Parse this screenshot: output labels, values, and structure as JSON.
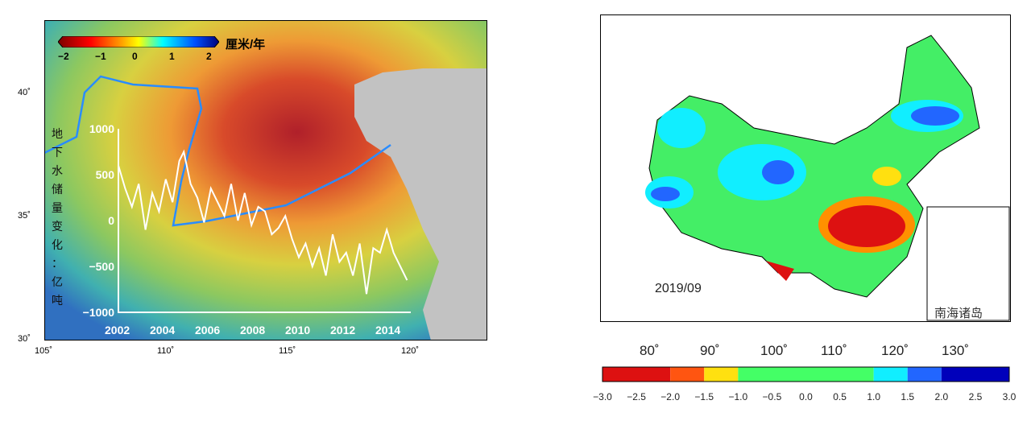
{
  "left_map": {
    "colorbar": {
      "unit": "厘米/年",
      "ticks": [
        "−2",
        "−1",
        "0",
        "1",
        "2"
      ],
      "colors": [
        "#7a0000",
        "#ff0000",
        "#ffa500",
        "#ffff00",
        "#00ffff",
        "#0060ff",
        "#00007a"
      ]
    },
    "lat_labels": [
      "40˚",
      "35˚",
      "30˚"
    ],
    "lon_labels": [
      "105˚",
      "110˚",
      "115˚",
      "120˚"
    ],
    "y_axis_title": [
      "地",
      "下",
      "水",
      "储",
      "量",
      "变",
      "化",
      "：",
      "亿",
      "吨"
    ],
    "y_ticks": [
      "1000",
      "500",
      "0",
      "−500",
      "−1000"
    ],
    "x_ticks": [
      "2002",
      "2004",
      "2006",
      "2008",
      "2010",
      "2012",
      "2014"
    ]
  },
  "chart_data": {
    "type": "line",
    "ylabel": "地下水储量变化：亿吨",
    "ylim": [
      -1000,
      1000
    ],
    "xlim": [
      2002,
      2014.99
    ],
    "x": [
      2002.0,
      2002.3,
      2002.6,
      2002.9,
      2003.2,
      2003.5,
      2003.8,
      2004.1,
      2004.4,
      2004.7,
      2004.9,
      2005.2,
      2005.5,
      2005.8,
      2006.1,
      2006.4,
      2006.7,
      2007.0,
      2007.3,
      2007.6,
      2007.9,
      2008.2,
      2008.5,
      2008.8,
      2009.1,
      2009.4,
      2009.7,
      2010.0,
      2010.3,
      2010.6,
      2010.9,
      2011.2,
      2011.5,
      2011.8,
      2012.1,
      2012.4,
      2012.7,
      2013.0,
      2013.3,
      2013.6,
      2013.9,
      2014.2,
      2014.5,
      2014.8
    ],
    "values": [
      600,
      350,
      150,
      400,
      -100,
      300,
      100,
      450,
      200,
      650,
      750,
      400,
      250,
      -20,
      350,
      200,
      50,
      400,
      0,
      300,
      -50,
      150,
      100,
      -150,
      -80,
      50,
      -200,
      -400,
      -250,
      -500,
      -300,
      -600,
      -150,
      -450,
      -350,
      -600,
      -250,
      -800,
      -300,
      -350,
      -100,
      -350,
      -500,
      -650
    ],
    "line_color": "#ffffff"
  },
  "right_map": {
    "date_label": "2019/09",
    "inset_label": "南海诸岛",
    "lon_labels": [
      "80˚",
      "90˚",
      "100˚",
      "110˚",
      "120˚",
      "130˚"
    ],
    "colorbar": {
      "ticks": [
        "−3.0",
        "−2.5",
        "−2.0",
        "−1.5",
        "−1.0",
        "−0.5",
        "0.0",
        "0.5",
        "1.0",
        "1.5",
        "2.0",
        "2.5",
        "3.0"
      ],
      "bins": [
        [
          -3,
          -2,
          "#dd1111"
        ],
        [
          -2,
          -1.5,
          "#ff5511"
        ],
        [
          -1.5,
          -1,
          "#ffe010"
        ],
        [
          -1,
          1,
          "#44ff66"
        ],
        [
          1,
          1.5,
          "#11eeff"
        ],
        [
          1.5,
          2,
          "#2266ff"
        ],
        [
          2,
          3,
          "#0000bb"
        ]
      ]
    }
  }
}
